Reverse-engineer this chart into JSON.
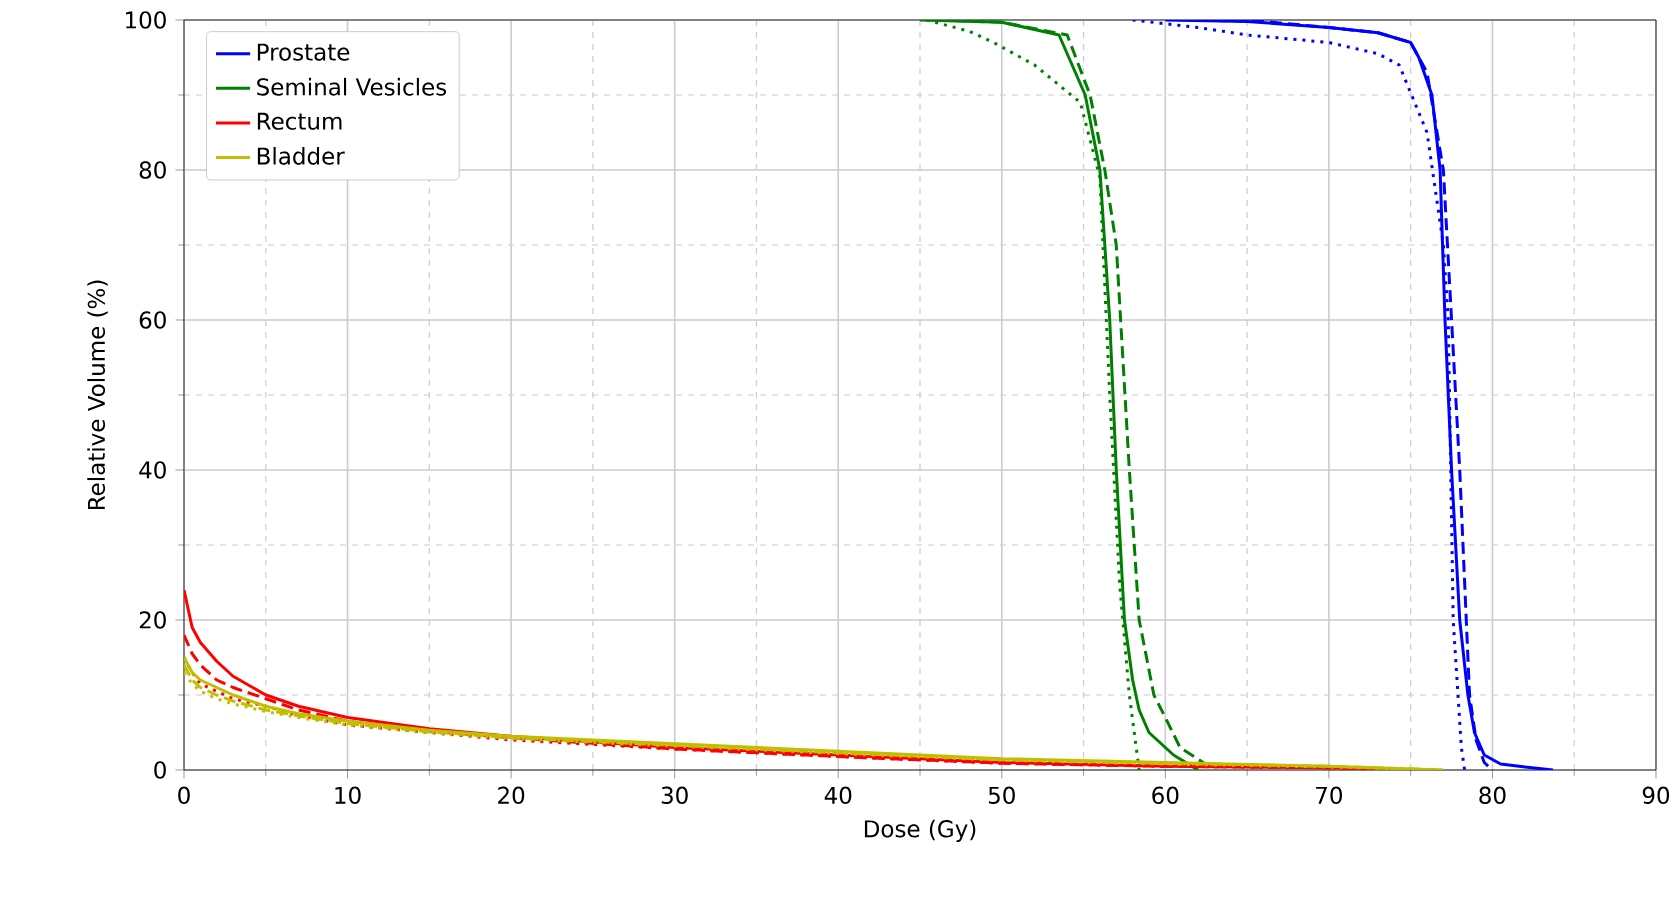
{
  "chart_data": {
    "type": "line",
    "xlabel": "Dose (Gy)",
    "ylabel": "Relative Volume (%)",
    "xlim": [
      0,
      90
    ],
    "ylim": [
      0,
      100
    ],
    "xticks": [
      0,
      10,
      20,
      30,
      40,
      50,
      60,
      70,
      80,
      90
    ],
    "yticks": [
      0,
      20,
      40,
      60,
      80,
      100
    ],
    "grid": true,
    "legend": "top left",
    "series": [
      {
        "name": "Prostate",
        "color": "#0000ff",
        "line_style": "solid",
        "x": [
          60,
          65,
          70,
          73,
          75,
          75.5,
          76.3,
          76.8,
          77.1,
          77.5,
          78.0,
          78.5,
          78.9,
          79.5,
          80.5,
          82,
          83.7
        ],
        "values": [
          100,
          99.8,
          99,
          98.3,
          97,
          95,
          90,
          80,
          60,
          40,
          20,
          10,
          5,
          2,
          0.8,
          0.4,
          0
        ]
      },
      {
        "color": "#0000ff",
        "line_style": "dashed",
        "x": [
          62,
          66,
          70,
          73,
          75,
          76,
          77.0,
          77.5,
          78.0,
          78.3,
          78.6,
          79,
          79.5,
          80
        ],
        "values": [
          100,
          99.8,
          99,
          98.3,
          97,
          93,
          80,
          60,
          40,
          25,
          10,
          4,
          1,
          0
        ]
      },
      {
        "color": "#0000ff",
        "line_style": "dotted",
        "x": [
          58,
          62,
          65,
          70,
          73,
          74.3,
          76,
          77.0,
          77.3,
          77.6,
          78.1,
          78.3
        ],
        "values": [
          100,
          99,
          98,
          97,
          95.5,
          94,
          85,
          70,
          60,
          20,
          3,
          0
        ]
      },
      {
        "name": "Seminal Vesicles",
        "color": "#008000",
        "line_style": "solid",
        "x": [
          45,
          50,
          53.5,
          55.1,
          56.0,
          56.6,
          57.0,
          57.5,
          58.0,
          58.4,
          59,
          60.5,
          62
        ],
        "values": [
          100,
          99.7,
          98,
          90,
          80,
          60,
          40,
          20,
          12,
          8,
          5,
          2,
          0
        ]
      },
      {
        "color": "#008000",
        "line_style": "dashed",
        "x": [
          46,
          50,
          54,
          55.4,
          56.3,
          57.0,
          57.4,
          57.8,
          58.4,
          59.3,
          60,
          60.9,
          63
        ],
        "values": [
          100,
          99.7,
          98,
          90,
          80,
          70,
          55,
          40,
          20,
          10,
          7,
          3,
          0
        ]
      },
      {
        "color": "#008000",
        "line_style": "dotted",
        "x": [
          45.4,
          48,
          49.5,
          52,
          54.8,
          56,
          56.6,
          57.2,
          57.8,
          58.4
        ],
        "values": [
          100,
          98.5,
          97,
          94,
          89,
          79,
          50,
          25,
          10,
          0
        ]
      },
      {
        "name": "Rectum",
        "color": "#ff0000",
        "line_style": "solid",
        "x": [
          0,
          0.5,
          1,
          2,
          3,
          5,
          7,
          10,
          15,
          20,
          30,
          40,
          50,
          60,
          70,
          76
        ],
        "values": [
          24,
          19,
          17,
          14.5,
          12.5,
          10,
          8.5,
          7,
          5.5,
          4.5,
          3,
          2,
          1,
          0.5,
          0.3,
          0
        ]
      },
      {
        "color": "#ff0000",
        "line_style": "dashed",
        "x": [
          0,
          0.5,
          1,
          2,
          3,
          5,
          7,
          10,
          15,
          20,
          30,
          40,
          50,
          60,
          70,
          76
        ],
        "values": [
          18,
          15.5,
          14,
          12,
          11,
          9.5,
          8,
          6.5,
          5.2,
          4.3,
          2.8,
          1.8,
          0.9,
          0.5,
          0.3,
          0
        ]
      },
      {
        "color": "#ff0000",
        "line_style": "dotted",
        "x": [
          0,
          0.5,
          1,
          2,
          3,
          5,
          7,
          10,
          15,
          20,
          30,
          40,
          50,
          60,
          70,
          76
        ],
        "values": [
          15,
          13,
          11.5,
          10.5,
          9.5,
          8.5,
          7.3,
          6,
          5,
          4,
          2.8,
          1.8,
          0.9,
          0.5,
          0.3,
          0
        ]
      },
      {
        "name": "Bladder",
        "color": "#bfbf00",
        "line_style": "solid",
        "x": [
          0,
          0.5,
          1,
          2,
          3,
          5,
          7,
          10,
          15,
          20,
          30,
          40,
          50,
          60,
          70,
          77
        ],
        "values": [
          15,
          13,
          12,
          11,
          10,
          8.5,
          7.5,
          6.5,
          5.3,
          4.5,
          3.5,
          2.5,
          1.5,
          1,
          0.5,
          0
        ]
      },
      {
        "color": "#bfbf00",
        "line_style": "dashed",
        "x": [
          0,
          0.5,
          1,
          2,
          3,
          5,
          7,
          10,
          15,
          20,
          30,
          40,
          50,
          60,
          70,
          77
        ],
        "values": [
          14,
          12,
          11,
          10,
          9.2,
          8,
          7.2,
          6.2,
          5.1,
          4.3,
          3.3,
          2.3,
          1.4,
          0.9,
          0.5,
          0
        ]
      },
      {
        "color": "#bfbf00",
        "line_style": "dotted",
        "x": [
          0,
          0.5,
          1,
          2,
          3,
          5,
          7,
          10,
          15,
          20,
          30,
          40,
          50,
          60,
          70,
          77
        ],
        "values": [
          13,
          11.5,
          10.5,
          9.5,
          8.8,
          7.8,
          7,
          6,
          5,
          4.2,
          3.2,
          2.2,
          1.3,
          0.8,
          0.4,
          0
        ]
      }
    ]
  }
}
